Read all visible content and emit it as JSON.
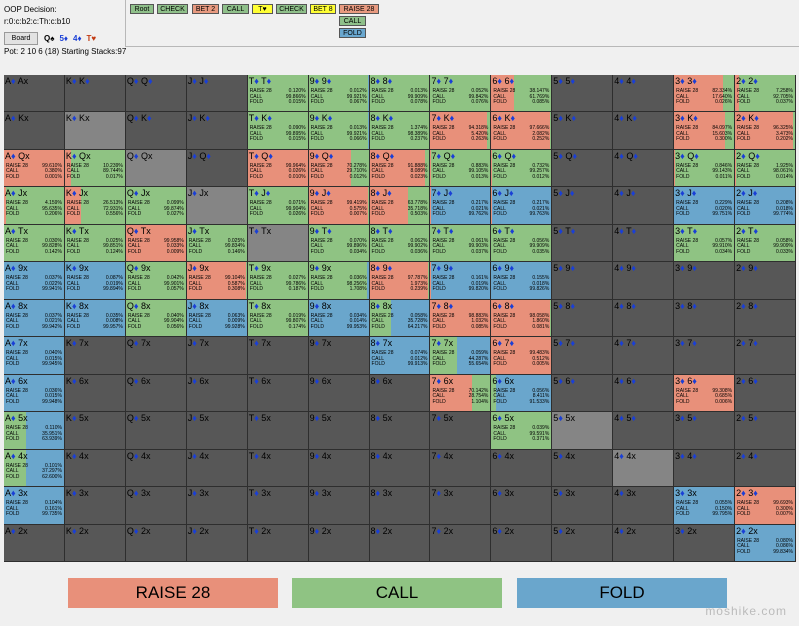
{
  "info": {
    "title": "OOP Decision:",
    "line": "r:0:c:b2:c:Th:c:b10",
    "board_button": "Board",
    "board_cards": [
      {
        "rank": "Q",
        "suit": "♠",
        "color": "#000000"
      },
      {
        "rank": "5",
        "suit": "♦",
        "color": "#1a3fd6"
      },
      {
        "rank": "4",
        "suit": "♦",
        "color": "#1a3fd6"
      },
      {
        "rank": "T",
        "suit": "♥",
        "color": "#c23a12"
      }
    ],
    "pot": "Pot: 2 10 6 (18) Starting Stacks:97"
  },
  "tree_buttons": [
    {
      "label": "Root",
      "color": "#8fc08a"
    },
    {
      "label": "CHECK",
      "color": "#8fc08a"
    },
    {
      "label": "BET 2",
      "color": "#e89a80"
    },
    {
      "label": "CALL",
      "color": "#8fc08a"
    },
    {
      "label": "T♥",
      "color": "#ffff33"
    },
    {
      "label": "CHECK",
      "color": "#8fc08a"
    },
    {
      "label": "BET 8",
      "color": "#ffff33"
    },
    {
      "label": "RAISE 28",
      "color": "#e89a80"
    },
    {
      "label": "CALL",
      "color": "#8fc08a"
    },
    {
      "label": "FOLD",
      "color": "#6aa8d0"
    }
  ],
  "colors": {
    "raise": "#e8907a",
    "call": "#8fc383",
    "fold": "#6aa6cc",
    "empty": "#575757",
    "diag": "#858585"
  },
  "legend": {
    "raise": "RAISE 28",
    "call": "CALL",
    "fold": "FOLD"
  },
  "watermark": "moshike.com",
  "grid": [
    [
      {
        "a": "A",
        "s1": "♦",
        "b": "x",
        "t": "A♦ Ax"
      },
      {
        "t": "K♦ K♦"
      },
      {
        "t": "Q♦ Q♦"
      },
      {
        "t": "J♦ J♦"
      },
      {
        "t": "T♦ T♦",
        "r": "0.120%",
        "c": "99.866%",
        "f": "0.015%"
      },
      {
        "t": "9♦ 9♦",
        "r": "0.012%",
        "c": "99.921%",
        "f": "0.067%"
      },
      {
        "t": "8♦ 8♦",
        "r": "0.013%",
        "c": "99.909%",
        "f": "0.078%"
      },
      {
        "t": "7♦ 7♦",
        "r": "0.052%",
        "c": "99.842%",
        "f": "0.076%"
      },
      {
        "t": "6♦ 6♦",
        "r": "38.147%",
        "c": "61.769%",
        "f": "0.085%"
      },
      {
        "t": "5♦ 5♦"
      },
      {
        "t": "4♦ 4♦"
      },
      {
        "t": "3♦ 3♦",
        "r": "82.334%",
        "c": "17.640%",
        "f": "0.026%"
      },
      {
        "t": "2♦ 2♦",
        "r": "7.258%",
        "c": "92.705%",
        "f": "0.037%"
      }
    ],
    [
      {
        "t": "A♦ Kx"
      },
      {
        "t": "K♦ Kx",
        "diag": true
      },
      {
        "t": "Q♦ K♦"
      },
      {
        "t": "J♦ K♦"
      },
      {
        "t": "T♦ K♦",
        "r": "0.090%",
        "c": "99.895%",
        "f": "0.015%"
      },
      {
        "t": "9♦ K♦",
        "r": "0.013%",
        "c": "99.921%",
        "f": "0.066%"
      },
      {
        "t": "8♦ K♦",
        "r": "1.374%",
        "c": "98.389%",
        "f": "0.237%"
      },
      {
        "t": "7♦ K♦",
        "r": "94.318%",
        "c": "5.420%",
        "f": "0.263%"
      },
      {
        "t": "6♦ K♦",
        "r": "97.666%",
        "c": "2.082%",
        "f": "0.252%"
      },
      {
        "t": "5♦ K♦"
      },
      {
        "t": "4♦ K♦"
      },
      {
        "t": "3♦ K♦",
        "r": "84.097%",
        "c": "15.603%",
        "f": "0.300%"
      },
      {
        "t": "2♦ K♦",
        "r": "96.325%",
        "c": "3.473%",
        "f": "0.202%"
      }
    ],
    [
      {
        "t": "A♦ Qx",
        "r": "99.610%",
        "c": "0.380%",
        "f": "0.001%"
      },
      {
        "t": "K♦ Qx",
        "r": "10.239%",
        "c": "89.744%",
        "f": "0.017%"
      },
      {
        "t": "Q♦ Qx",
        "diag": true
      },
      {
        "t": "J♦ Q♦"
      },
      {
        "t": "T♦ Q♦",
        "r": "99.964%",
        "c": "0.026%",
        "f": "0.010%"
      },
      {
        "t": "9♦ Q♦",
        "r": "70.278%",
        "c": "29.710%",
        "f": "0.012%"
      },
      {
        "t": "8♦ Q♦",
        "r": "91.888%",
        "c": "8.089%",
        "f": "0.023%"
      },
      {
        "t": "7♦ Q♦",
        "r": "0.883%",
        "c": "99.105%",
        "f": "0.013%"
      },
      {
        "t": "6♦ Q♦",
        "r": "0.732%",
        "c": "99.257%",
        "f": "0.012%"
      },
      {
        "t": "5♦ Q♦"
      },
      {
        "t": "4♦ Q♦"
      },
      {
        "t": "3♦ Q♦",
        "r": "0.846%",
        "c": "99.143%",
        "f": "0.011%"
      },
      {
        "t": "2♦ Q♦",
        "r": "1.925%",
        "c": "98.061%",
        "f": "0.014%"
      }
    ],
    [
      {
        "t": "A♦ Jx",
        "r": "4.159%",
        "c": "95.635%",
        "f": "0.206%"
      },
      {
        "t": "K♦ Jx",
        "r": "26.513%",
        "c": "72.931%",
        "f": "0.556%"
      },
      {
        "t": "Q♦ Jx",
        "r": "0.099%",
        "c": "99.874%",
        "f": "0.027%"
      },
      {
        "t": "J♦ Jx",
        "diag": true
      },
      {
        "t": "T♦ J♦",
        "r": "0.071%",
        "c": "99.904%",
        "f": "0.026%"
      },
      {
        "t": "9♦ J♦",
        "r": "99.419%",
        "c": "0.575%",
        "f": "0.007%"
      },
      {
        "t": "8♦ J♦",
        "r": "63.778%",
        "c": "35.718%",
        "f": "0.503%"
      },
      {
        "t": "7♦ J♦",
        "r": "0.217%",
        "c": "0.021%",
        "f": "99.762%"
      },
      {
        "t": "6♦ J♦",
        "r": "0.217%",
        "c": "0.021%",
        "f": "99.763%"
      },
      {
        "t": "5♦ J♦"
      },
      {
        "t": "4♦ J♦"
      },
      {
        "t": "3♦ J♦",
        "r": "0.229%",
        "c": "0.020%",
        "f": "99.751%"
      },
      {
        "t": "2♦ J♦",
        "r": "0.208%",
        "c": "0.018%",
        "f": "99.774%"
      }
    ],
    [
      {
        "t": "A♦ Tx",
        "r": "0.030%",
        "c": "99.828%",
        "f": "0.142%"
      },
      {
        "t": "K♦ Tx",
        "r": "0.025%",
        "c": "99.851%",
        "f": "0.124%"
      },
      {
        "t": "Q♦ Tx",
        "r": "99.958%",
        "c": "0.033%",
        "f": "0.009%"
      },
      {
        "t": "J♦ Tx",
        "r": "0.025%",
        "c": "99.834%",
        "f": "0.146%"
      },
      {
        "t": "T♦ Tx",
        "diag": true
      },
      {
        "t": "9♦ T♦",
        "r": "0.070%",
        "c": "99.896%",
        "f": "0.034%"
      },
      {
        "t": "8♦ T♦",
        "r": "0.062%",
        "c": "99.902%",
        "f": "0.036%"
      },
      {
        "t": "7♦ T♦",
        "r": "0.061%",
        "c": "99.903%",
        "f": "0.037%"
      },
      {
        "t": "6♦ T♦",
        "r": "0.056%",
        "c": "99.909%",
        "f": "0.035%"
      },
      {
        "t": "5♦ T♦"
      },
      {
        "t": "4♦ T♦"
      },
      {
        "t": "3♦ T♦",
        "r": "0.057%",
        "c": "99.910%",
        "f": "0.034%"
      },
      {
        "t": "2♦ T♦",
        "r": "0.058%",
        "c": "99.909%",
        "f": "0.033%"
      }
    ],
    [
      {
        "t": "A♦ 9x",
        "r": "0.037%",
        "c": "0.022%",
        "f": "99.941%"
      },
      {
        "t": "K♦ 9x",
        "r": "0.087%",
        "c": "0.019%",
        "f": "99.894%"
      },
      {
        "t": "Q♦ 9x",
        "r": "0.042%",
        "c": "99.901%",
        "f": "0.057%"
      },
      {
        "t": "J♦ 9x",
        "r": "99.104%",
        "c": "0.587%",
        "f": "0.308%"
      },
      {
        "t": "T♦ 9x",
        "r": "0.027%",
        "c": "99.786%",
        "f": "0.187%"
      },
      {
        "t": "9♦ 9x",
        "r": "0.036%",
        "c": "98.256%",
        "f": "1.708%"
      },
      {
        "t": "8♦ 9♦",
        "r": "97.787%",
        "c": "1.973%",
        "f": "0.239%"
      },
      {
        "t": "7♦ 9♦",
        "r": "0.161%",
        "c": "0.019%",
        "f": "99.820%"
      },
      {
        "t": "6♦ 9♦",
        "r": "0.155%",
        "c": "0.018%",
        "f": "99.826%"
      },
      {
        "t": "5♦ 9♦"
      },
      {
        "t": "4♦ 9♦"
      },
      {
        "t": "3♦ 9♦"
      },
      {
        "t": "2♦ 9♦"
      }
    ],
    [
      {
        "t": "A♦ 8x",
        "r": "0.037%",
        "c": "0.021%",
        "f": "99.942%"
      },
      {
        "t": "K♦ 8x",
        "r": "0.035%",
        "c": "0.008%",
        "f": "99.957%"
      },
      {
        "t": "Q♦ 8x",
        "r": "0.040%",
        "c": "99.904%",
        "f": "0.056%"
      },
      {
        "t": "J♦ 8x",
        "r": "0.063%",
        "c": "0.009%",
        "f": "99.928%"
      },
      {
        "t": "T♦ 8x",
        "r": "0.019%",
        "c": "99.807%",
        "f": "0.174%"
      },
      {
        "t": "9♦ 8x",
        "r": "0.034%",
        "c": "0.014%",
        "f": "99.953%"
      },
      {
        "t": "8♦ 8x",
        "r": "0.058%",
        "c": "35.728%",
        "f": "64.217%"
      },
      {
        "t": "7♦ 8♦",
        "r": "98.883%",
        "c": "1.032%",
        "f": "0.085%"
      },
      {
        "t": "6♦ 8♦",
        "r": "98.058%",
        "c": "1.860%",
        "f": "0.081%"
      },
      {
        "t": "5♦ 8♦"
      },
      {
        "t": "4♦ 8♦"
      },
      {
        "t": "3♦ 8♦"
      },
      {
        "t": "2♦ 8♦"
      }
    ],
    [
      {
        "t": "A♦ 7x",
        "r": "0.040%",
        "c": "0.015%",
        "f": "99.945%"
      },
      {
        "t": "K♦ 7x"
      },
      {
        "t": "Q♦ 7x"
      },
      {
        "t": "J♦ 7x"
      },
      {
        "t": "T♦ 7x"
      },
      {
        "t": "9♦ 7x"
      },
      {
        "t": "8♦ 7x",
        "r": "0.074%",
        "c": "0.012%",
        "f": "99.913%"
      },
      {
        "t": "7♦ 7x",
        "r": "0.059%",
        "c": "44.287%",
        "f": "55.654%"
      },
      {
        "t": "6♦ 7♦",
        "r": "99.483%",
        "c": "0.512%",
        "f": "0.005%"
      },
      {
        "t": "5♦ 7♦"
      },
      {
        "t": "4♦ 7♦"
      },
      {
        "t": "3♦ 7♦"
      },
      {
        "t": "2♦ 7♦"
      }
    ],
    [
      {
        "t": "A♦ 6x",
        "r": "0.036%",
        "c": "0.015%",
        "f": "99.948%"
      },
      {
        "t": "K♦ 6x"
      },
      {
        "t": "Q♦ 6x"
      },
      {
        "t": "J♦ 6x"
      },
      {
        "t": "T♦ 6x"
      },
      {
        "t": "9♦ 6x"
      },
      {
        "t": "8♦ 6x"
      },
      {
        "t": "7♦ 6x",
        "r": "70.142%",
        "c": "28.754%",
        "f": "1.104%"
      },
      {
        "t": "6♦ 6x",
        "r": "0.056%",
        "c": "8.411%",
        "f": "91.533%"
      },
      {
        "t": "5♦ 6♦"
      },
      {
        "t": "4♦ 6♦"
      },
      {
        "t": "3♦ 6♦",
        "r": "99.308%",
        "c": "0.685%",
        "f": "0.006%"
      },
      {
        "t": "2♦ 6♦"
      }
    ],
    [
      {
        "t": "A♦ 5x",
        "r": "0.110%",
        "c": "35.951%",
        "f": "63.939%"
      },
      {
        "t": "K♦ 5x"
      },
      {
        "t": "Q♦ 5x"
      },
      {
        "t": "J♦ 5x"
      },
      {
        "t": "T♦ 5x"
      },
      {
        "t": "9♦ 5x"
      },
      {
        "t": "8♦ 5x"
      },
      {
        "t": "7♦ 5x"
      },
      {
        "t": "6♦ 5x",
        "r": "0.039%",
        "c": "99.591%",
        "f": "0.371%"
      },
      {
        "t": "5♦ 5x",
        "diag": true
      },
      {
        "t": "4♦ 5♦"
      },
      {
        "t": "3♦ 5♦"
      },
      {
        "t": "2♦ 5♦"
      }
    ],
    [
      {
        "t": "A♦ 4x",
        "r": "0.101%",
        "c": "37.297%",
        "f": "62.600%"
      },
      {
        "t": "K♦ 4x"
      },
      {
        "t": "Q♦ 4x"
      },
      {
        "t": "J♦ 4x"
      },
      {
        "t": "T♦ 4x"
      },
      {
        "t": "9♦ 4x"
      },
      {
        "t": "8♦ 4x"
      },
      {
        "t": "7♦ 4x"
      },
      {
        "t": "6♦ 4x"
      },
      {
        "t": "5♦ 4x"
      },
      {
        "t": "4♦ 4x",
        "diag": true
      },
      {
        "t": "3♦ 4♦"
      },
      {
        "t": "2♦ 4♦"
      }
    ],
    [
      {
        "t": "A♦ 3x",
        "r": "0.104%",
        "c": "0.161%",
        "f": "99.735%"
      },
      {
        "t": "K♦ 3x"
      },
      {
        "t": "Q♦ 3x"
      },
      {
        "t": "J♦ 3x"
      },
      {
        "t": "T♦ 3x"
      },
      {
        "t": "9♦ 3x"
      },
      {
        "t": "8♦ 3x"
      },
      {
        "t": "7♦ 3x"
      },
      {
        "t": "6♦ 3x"
      },
      {
        "t": "5♦ 3x"
      },
      {
        "t": "4♦ 3x"
      },
      {
        "t": "3♦ 3x",
        "r": "0.055%",
        "c": "0.150%",
        "f": "99.795%"
      },
      {
        "t": "2♦ 3♦",
        "r": "99.693%",
        "c": "0.300%",
        "f": "0.007%"
      }
    ],
    [
      {
        "t": "A♦ 2x"
      },
      {
        "t": "K♦ 2x"
      },
      {
        "t": "Q♦ 2x"
      },
      {
        "t": "J♦ 2x"
      },
      {
        "t": "T♦ 2x"
      },
      {
        "t": "9♦ 2x"
      },
      {
        "t": "8♦ 2x"
      },
      {
        "t": "7♦ 2x"
      },
      {
        "t": "6♦ 2x"
      },
      {
        "t": "5♦ 2x"
      },
      {
        "t": "4♦ 2x"
      },
      {
        "t": "3♦ 2x"
      },
      {
        "t": "2♦ 2x",
        "r": "0.080%",
        "c": "0.086%",
        "f": "99.834%"
      }
    ]
  ],
  "labels": {
    "raise": "RAISE 28",
    "call": "CALL",
    "fold": "FOLD"
  }
}
